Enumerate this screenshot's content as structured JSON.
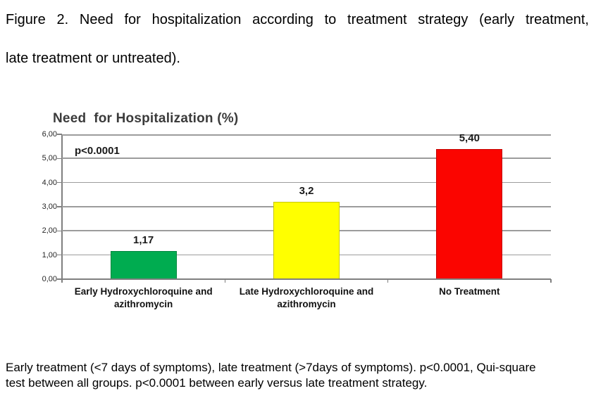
{
  "top_caption": {
    "line1": "Figure 2. Need for hospitalization according to treatment strategy (early treatment,",
    "line2": "late treatment or untreated)."
  },
  "chart_data": {
    "type": "bar",
    "title": "Need  for Hospitalization (%)",
    "annotation": "p<0.0001",
    "categories": [
      "Early Hydroxychloroquine and\nazithromycin",
      "Late Hydroxychloroquine and\nazithromycin",
      "No Treatment"
    ],
    "values": [
      1.17,
      3.2,
      5.4
    ],
    "value_labels": [
      "1,17",
      "3,2",
      "5,40"
    ],
    "bar_names": [
      "early-treatment",
      "late-treatment",
      "no-treatment"
    ],
    "bar_colors": [
      "#00AC50",
      "#FFFF00",
      "#FB0500"
    ],
    "ylim": [
      0,
      6
    ],
    "ytick_labels": [
      "0,00",
      "1,00",
      "2,00",
      "3,00",
      "4,00",
      "5,00",
      "6,00"
    ],
    "xlabel": "",
    "ylabel": "",
    "grid": true,
    "legend_position": "none",
    "colors": {
      "grid": "#9C9C9C",
      "axis": "#7F7F7F",
      "title": "#3B3B3B",
      "text": "#1A1A1A"
    }
  },
  "bottom_caption": {
    "line1": "Early treatment (<7 days of symptoms), late treatment (>7days of symptoms). p<0.0001, Qui-square",
    "line2": "test between all groups. p<0.0001 between early versus late treatment strategy."
  }
}
